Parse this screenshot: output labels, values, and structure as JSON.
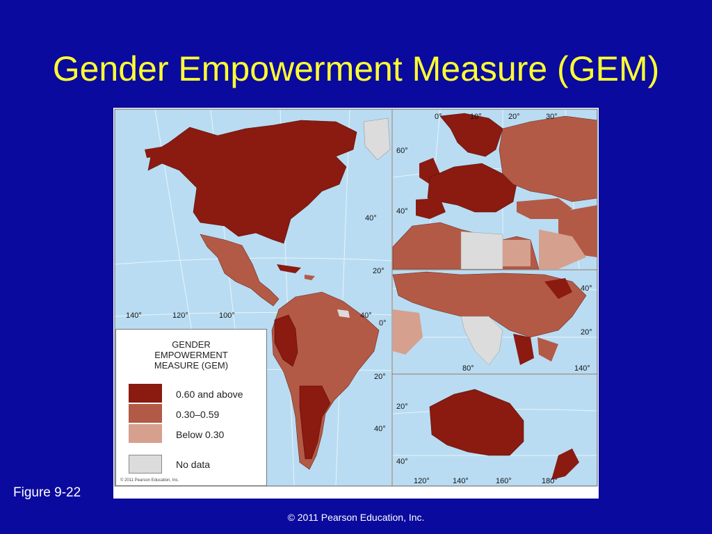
{
  "title": "Gender Empowerment Measure (GEM)",
  "figure_label": "Figure 9-22",
  "footer": "© 2011 Pearson Education, Inc.",
  "map_credit": "© 2011 Pearson Education, Inc.",
  "legend": {
    "title_lines": [
      "GENDER",
      "EMPOWERMENT",
      "MEASURE (GEM)"
    ],
    "items": [
      {
        "label": "0.60 and above",
        "color": "#8b1a10"
      },
      {
        "label": "0.30–0.59",
        "color": "#b35a46"
      },
      {
        "label": "Below 0.30",
        "color": "#d6a08e"
      },
      {
        "label": "No data",
        "color": "#dcdcdc"
      }
    ]
  },
  "colors": {
    "background": "#0a0a9e",
    "title": "#ffff33",
    "ocean": "#b9dcf2",
    "high": "#8b1a10",
    "mid": "#b35a46",
    "low": "#d6a08e",
    "nodata": "#dcdcdc"
  },
  "coordinate_labels": {
    "americas": [
      "140°",
      "120°",
      "100°",
      "40°",
      "20°",
      "0°",
      "40°",
      "20°",
      "40°"
    ],
    "europe": [
      "0°",
      "10°",
      "20°",
      "30°",
      "60°",
      "40°"
    ],
    "asia": [
      "40°",
      "20°",
      "80°",
      "140°"
    ],
    "oceania": [
      "20°",
      "40°",
      "120°",
      "140°",
      "160°",
      "180°"
    ]
  }
}
